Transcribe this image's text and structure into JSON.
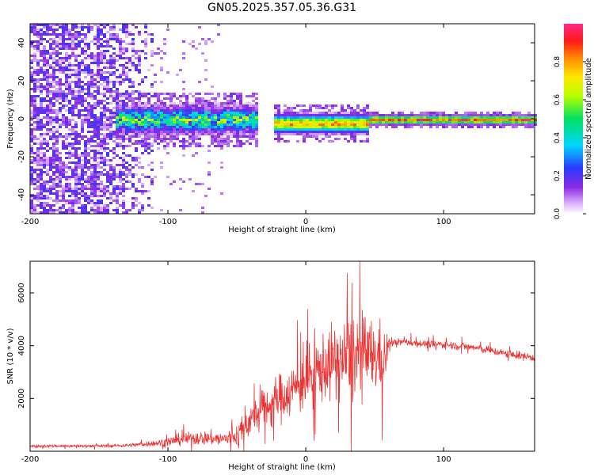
{
  "title": "GN05.2025.357.05.36.G31",
  "colors": {
    "snr_trace": "#ee3333",
    "axis": "#000000",
    "spectrum_background": "#ffffff"
  },
  "chart_data": [
    {
      "type": "heatmap",
      "name": "spectrogram",
      "xlabel": "Height of straight line (km)",
      "ylabel": "Frequency (Hz)",
      "xlim": [
        -200,
        166
      ],
      "ylim": [
        -50,
        50
      ],
      "x_ticks": [
        -200,
        -100,
        0,
        100
      ],
      "y_ticks": [
        -40,
        -20,
        0,
        20,
        40
      ],
      "colorbar": {
        "label": "Normalized spectral amplitude",
        "range": [
          0,
          1
        ],
        "ticks": [
          0.0,
          0.2,
          0.4,
          0.6,
          0.8
        ],
        "tick_labels": [
          "0.0",
          "0.2",
          "0.4",
          "0.6",
          "0.8"
        ],
        "colormap": "rainbow (white-purple-blue-cyan-green-yellow-orange-red-magenta)"
      },
      "features": [
        {
          "x_range": [
            -200,
            -112
          ],
          "description": "broadband noise, all frequencies",
          "amplitude": 0.15
        },
        {
          "x_range": [
            -140,
            -35
          ],
          "center_freq": 0,
          "halfwidth_hz": 6,
          "peak_amplitude": 0.55
        },
        {
          "x_range": [
            -25,
            45
          ],
          "center_freq": -2,
          "halfwidth_hz": 4,
          "peak_amplitude": 0.85
        },
        {
          "x_range": [
            45,
            166
          ],
          "center_freq": 0,
          "halfwidth_hz": 2,
          "peak_amplitude": 0.95
        }
      ]
    },
    {
      "type": "line",
      "name": "snr",
      "xlabel": "Height of straight line (km)",
      "ylabel": "SNR (10 * v/v)",
      "xlim": [
        -200,
        166
      ],
      "ylim": [
        0,
        7200
      ],
      "x_ticks": [
        -200,
        -100,
        0,
        100
      ],
      "y_ticks": [
        2000,
        4000,
        6000
      ],
      "series_envelope": {
        "x": [
          -200,
          -150,
          -130,
          -110,
          -100,
          -90,
          -80,
          -70,
          -60,
          -50,
          -40,
          -30,
          -20,
          -10,
          0,
          10,
          20,
          30,
          35,
          40,
          50,
          58,
          60,
          70,
          80,
          90,
          100,
          110,
          120,
          130,
          140,
          150,
          166
        ],
        "mean": [
          200,
          200,
          220,
          300,
          350,
          450,
          500,
          500,
          450,
          600,
          1200,
          1600,
          2000,
          2300,
          2700,
          3100,
          3400,
          3500,
          3600,
          3600,
          3600,
          3500,
          4100,
          4150,
          4100,
          4050,
          4050,
          4000,
          3950,
          3850,
          3750,
          3650,
          3550
        ],
        "noise": [
          60,
          60,
          70,
          120,
          200,
          250,
          300,
          300,
          300,
          500,
          700,
          800,
          1000,
          1100,
          1300,
          1400,
          1500,
          1700,
          2000,
          1800,
          1500,
          1400,
          150,
          150,
          160,
          160,
          170,
          170,
          170,
          170,
          170,
          170,
          170
        ]
      }
    }
  ]
}
